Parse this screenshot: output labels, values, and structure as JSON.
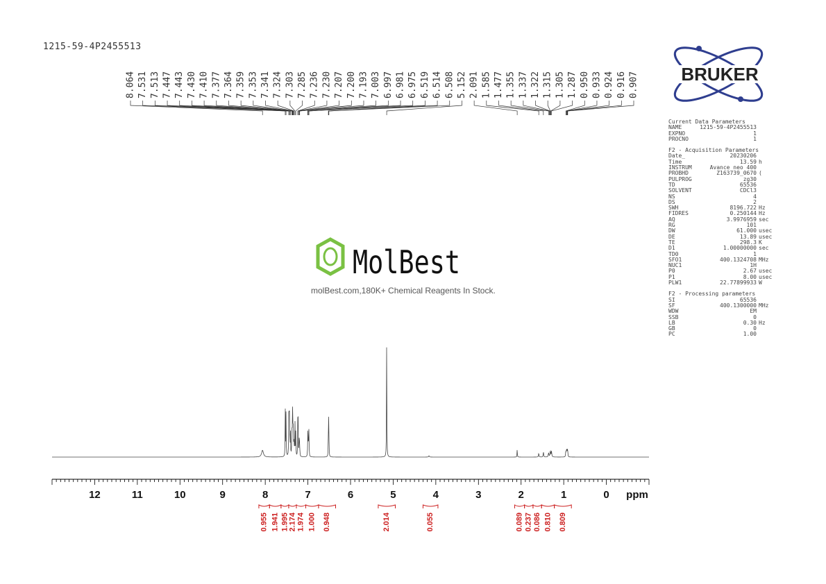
{
  "sample_id": "1215-59-4P2455513",
  "watermark": {
    "brand": "MolBest",
    "tagline": "molBest.com,180K+ Chemical Reagents In Stock."
  },
  "logo": {
    "text": "BRUKER",
    "accent_color": "#2f3e8f",
    "dot_color": "#2f3e8f"
  },
  "colors": {
    "spectrum": "#444444",
    "integral": "#cc1f1f",
    "axis": "#000000"
  },
  "parameters": {
    "current": {
      "heading": "Current Data Parameters",
      "rows": [
        {
          "k": "NAME",
          "v": "1215-59-4P2455513",
          "u": ""
        },
        {
          "k": "EXPNO",
          "v": "1",
          "u": ""
        },
        {
          "k": "PROCNO",
          "v": "1",
          "u": ""
        }
      ]
    },
    "acquisition": {
      "heading": "F2 - Acquisition Parameters",
      "rows": [
        {
          "k": "Date_",
          "v": "20230206",
          "u": ""
        },
        {
          "k": "Time",
          "v": "13.59",
          "u": "h"
        },
        {
          "k": "INSTRUM",
          "v": "Avance neo 400",
          "u": ""
        },
        {
          "k": "PROBHD",
          "v": "Z163739_0670",
          "u": "("
        },
        {
          "k": "PULPROG",
          "v": "zg30",
          "u": ""
        },
        {
          "k": "TD",
          "v": "65536",
          "u": ""
        },
        {
          "k": "SOLVENT",
          "v": "CDCl3",
          "u": ""
        },
        {
          "k": "NS",
          "v": "4",
          "u": ""
        },
        {
          "k": "DS",
          "v": "2",
          "u": ""
        },
        {
          "k": "SWH",
          "v": "8196.722",
          "u": "Hz"
        },
        {
          "k": "FIDRES",
          "v": "0.250144",
          "u": "Hz"
        },
        {
          "k": "AQ",
          "v": "3.9976959",
          "u": "sec"
        },
        {
          "k": "RG",
          "v": "101",
          "u": ""
        },
        {
          "k": "DW",
          "v": "61.000",
          "u": "usec"
        },
        {
          "k": "DE",
          "v": "13.89",
          "u": "usec"
        },
        {
          "k": "TE",
          "v": "298.3",
          "u": "K"
        },
        {
          "k": "D1",
          "v": "1.00000000",
          "u": "sec"
        },
        {
          "k": "TD0",
          "v": "1",
          "u": ""
        },
        {
          "k": "SFO1",
          "v": "400.1324708",
          "u": "MHz"
        },
        {
          "k": "NUC1",
          "v": "1H",
          "u": ""
        },
        {
          "k": "P0",
          "v": "2.67",
          "u": "usec"
        },
        {
          "k": "P1",
          "v": "8.00",
          "u": "usec"
        },
        {
          "k": "PLW1",
          "v": "22.77899933",
          "u": "W"
        }
      ]
    },
    "processing": {
      "heading": "F2 - Processing parameters",
      "rows": [
        {
          "k": "SI",
          "v": "65536",
          "u": ""
        },
        {
          "k": "SF",
          "v": "400.1300000",
          "u": "MHz"
        },
        {
          "k": "WDW",
          "v": "EM",
          "u": ""
        },
        {
          "k": "SSB",
          "v": "0",
          "u": ""
        },
        {
          "k": "LB",
          "v": "0.30",
          "u": "Hz"
        },
        {
          "k": "GB",
          "v": "0",
          "u": ""
        },
        {
          "k": "PC",
          "v": "1.00",
          "u": ""
        }
      ]
    }
  },
  "chart_data": {
    "type": "line",
    "xlabel": "ppm",
    "x_reversed": true,
    "xlim": [
      13,
      -1
    ],
    "x_ticks": [
      12,
      11,
      10,
      9,
      8,
      7,
      6,
      5,
      4,
      3,
      2,
      1,
      0
    ],
    "x_tick_labels": [
      "12",
      "11",
      "10",
      "9",
      "8",
      "7",
      "6",
      "5",
      "4",
      "3",
      "2",
      "1",
      "0"
    ],
    "peak_labels": [
      "8.064",
      "7.531",
      "7.513",
      "7.447",
      "7.443",
      "7.430",
      "7.410",
      "7.377",
      "7.364",
      "7.359",
      "7.353",
      "7.341",
      "7.324",
      "7.303",
      "7.285",
      "7.236",
      "7.230",
      "7.207",
      "7.200",
      "7.193",
      "7.003",
      "6.997",
      "6.981",
      "6.975",
      "6.519",
      "6.514",
      "6.508",
      "5.152",
      "2.091",
      "1.585",
      "1.477",
      "1.355",
      "1.337",
      "1.322",
      "1.315",
      "1.305",
      "1.287",
      "0.950",
      "0.933",
      "0.924",
      "0.916",
      "0.907"
    ],
    "peaks": [
      {
        "ppm": 8.064,
        "h": 0.055,
        "w": 0.025
      },
      {
        "ppm": 7.531,
        "h": 0.38,
        "w": 0.004
      },
      {
        "ppm": 7.513,
        "h": 0.36,
        "w": 0.004
      },
      {
        "ppm": 7.447,
        "h": 0.29,
        "w": 0.004
      },
      {
        "ppm": 7.443,
        "h": 0.3,
        "w": 0.004
      },
      {
        "ppm": 7.43,
        "h": 0.42,
        "w": 0.004
      },
      {
        "ppm": 7.41,
        "h": 0.22,
        "w": 0.004
      },
      {
        "ppm": 7.377,
        "h": 0.2,
        "w": 0.004
      },
      {
        "ppm": 7.364,
        "h": 0.24,
        "w": 0.004
      },
      {
        "ppm": 7.359,
        "h": 0.22,
        "w": 0.004
      },
      {
        "ppm": 7.353,
        "h": 0.19,
        "w": 0.004
      },
      {
        "ppm": 7.341,
        "h": 0.25,
        "w": 0.004
      },
      {
        "ppm": 7.324,
        "h": 0.15,
        "w": 0.004
      },
      {
        "ppm": 7.303,
        "h": 0.27,
        "w": 0.004
      },
      {
        "ppm": 7.285,
        "h": 0.2,
        "w": 0.004
      },
      {
        "ppm": 7.236,
        "h": 0.27,
        "w": 0.004
      },
      {
        "ppm": 7.23,
        "h": 0.26,
        "w": 0.004
      },
      {
        "ppm": 7.207,
        "h": 0.12,
        "w": 0.004
      },
      {
        "ppm": 7.2,
        "h": 0.1,
        "w": 0.004
      },
      {
        "ppm": 7.193,
        "h": 0.09,
        "w": 0.004
      },
      {
        "ppm": 7.003,
        "h": 0.15,
        "w": 0.004
      },
      {
        "ppm": 6.997,
        "h": 0.16,
        "w": 0.004
      },
      {
        "ppm": 6.981,
        "h": 0.17,
        "w": 0.004
      },
      {
        "ppm": 6.975,
        "h": 0.16,
        "w": 0.004
      },
      {
        "ppm": 6.519,
        "h": 0.14,
        "w": 0.004
      },
      {
        "ppm": 6.514,
        "h": 0.24,
        "w": 0.004
      },
      {
        "ppm": 6.508,
        "h": 0.15,
        "w": 0.004
      },
      {
        "ppm": 5.152,
        "h": 1.0,
        "w": 0.004
      },
      {
        "ppm": 4.16,
        "h": 0.01,
        "w": 0.01
      },
      {
        "ppm": 2.091,
        "h": 0.07,
        "w": 0.004
      },
      {
        "ppm": 1.585,
        "h": 0.035,
        "w": 0.006
      },
      {
        "ppm": 1.477,
        "h": 0.045,
        "w": 0.006
      },
      {
        "ppm": 1.355,
        "h": 0.035,
        "w": 0.008
      },
      {
        "ppm": 1.315,
        "h": 0.05,
        "w": 0.008
      },
      {
        "ppm": 1.287,
        "h": 0.045,
        "w": 0.008
      },
      {
        "ppm": 0.95,
        "h": 0.055,
        "w": 0.005
      },
      {
        "ppm": 0.933,
        "h": 0.08,
        "w": 0.005
      },
      {
        "ppm": 0.916,
        "h": 0.06,
        "w": 0.005
      },
      {
        "ppm": 0.907,
        "h": 0.04,
        "w": 0.005
      }
    ],
    "integrals": [
      {
        "from": 8.15,
        "to": 7.9,
        "value": "0.955"
      },
      {
        "from": 7.9,
        "to": 7.63,
        "value": "1.941"
      },
      {
        "from": 7.63,
        "to": 7.45,
        "value": "1.995"
      },
      {
        "from": 7.45,
        "to": 7.27,
        "value": "2.174"
      },
      {
        "from": 7.27,
        "to": 7.05,
        "value": "1.974"
      },
      {
        "from": 7.05,
        "to": 6.75,
        "value": "1.000"
      },
      {
        "from": 6.75,
        "to": 6.35,
        "value": "0.948"
      },
      {
        "from": 5.35,
        "to": 4.95,
        "value": "2.014"
      },
      {
        "from": 4.3,
        "to": 3.95,
        "value": "0.055"
      },
      {
        "from": 2.15,
        "to": 1.92,
        "value": "0.089"
      },
      {
        "from": 1.92,
        "to": 1.72,
        "value": "0.237"
      },
      {
        "from": 1.72,
        "to": 1.52,
        "value": "0.086"
      },
      {
        "from": 1.52,
        "to": 1.22,
        "value": "0.810"
      },
      {
        "from": 1.22,
        "to": 0.82,
        "value": "0.809"
      }
    ]
  }
}
